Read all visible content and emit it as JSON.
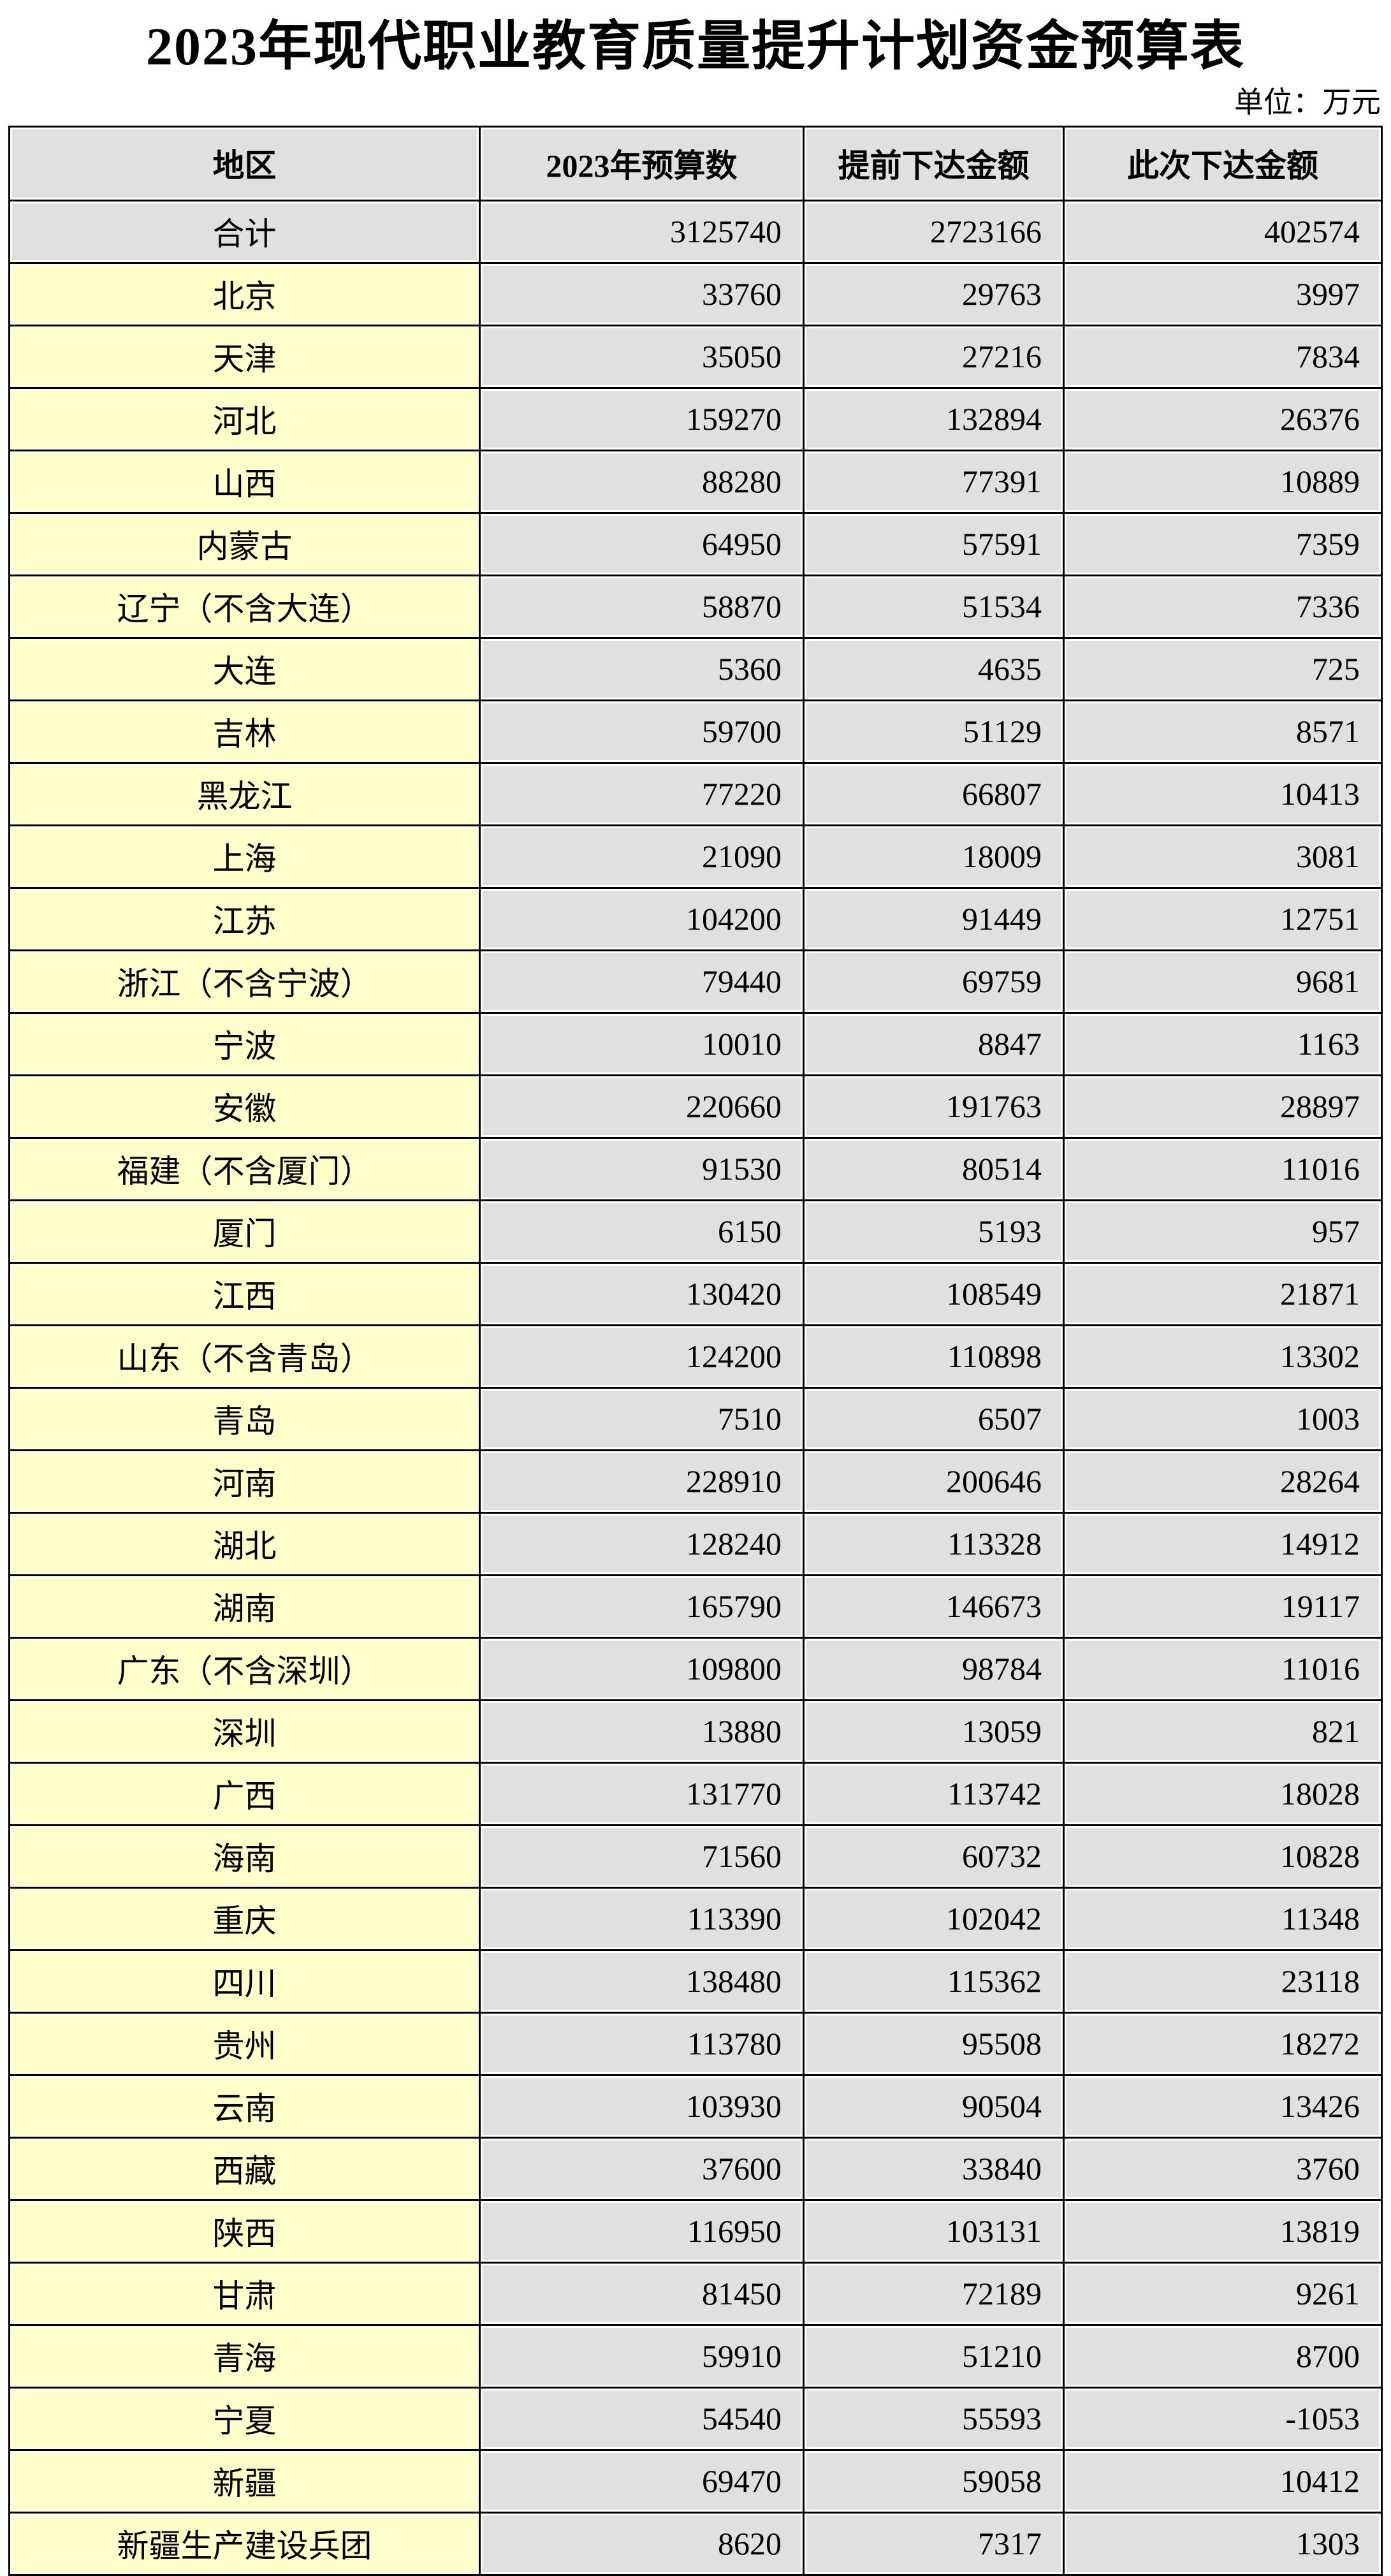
{
  "title": "2023年现代职业教育质量提升计划资金预算表",
  "unit_label": "单位：万元",
  "colors": {
    "region_column_fill": "#ffffcc",
    "data_cell_fill": "#e0e0e0",
    "gridline": "#000000",
    "background": "#ffffff"
  },
  "table": {
    "headers": [
      "地区",
      "2023年预算数",
      "提前下达金额",
      "此次下达金额"
    ],
    "total_row": {
      "region": "合计",
      "values": [
        3125740,
        2723166,
        402574
      ]
    },
    "rows": [
      {
        "region": "北京",
        "values": [
          33760,
          29763,
          3997
        ]
      },
      {
        "region": "天津",
        "values": [
          35050,
          27216,
          7834
        ]
      },
      {
        "region": "河北",
        "values": [
          159270,
          132894,
          26376
        ]
      },
      {
        "region": "山西",
        "values": [
          88280,
          77391,
          10889
        ]
      },
      {
        "region": "内蒙古",
        "values": [
          64950,
          57591,
          7359
        ]
      },
      {
        "region": "辽宁（不含大连）",
        "values": [
          58870,
          51534,
          7336
        ]
      },
      {
        "region": "大连",
        "values": [
          5360,
          4635,
          725
        ]
      },
      {
        "region": "吉林",
        "values": [
          59700,
          51129,
          8571
        ]
      },
      {
        "region": "黑龙江",
        "values": [
          77220,
          66807,
          10413
        ]
      },
      {
        "region": "上海",
        "values": [
          21090,
          18009,
          3081
        ]
      },
      {
        "region": "江苏",
        "values": [
          104200,
          91449,
          12751
        ]
      },
      {
        "region": "浙江（不含宁波）",
        "values": [
          79440,
          69759,
          9681
        ]
      },
      {
        "region": "宁波",
        "values": [
          10010,
          8847,
          1163
        ]
      },
      {
        "region": "安徽",
        "values": [
          220660,
          191763,
          28897
        ]
      },
      {
        "region": "福建（不含厦门）",
        "values": [
          91530,
          80514,
          11016
        ]
      },
      {
        "region": "厦门",
        "values": [
          6150,
          5193,
          957
        ]
      },
      {
        "region": "江西",
        "values": [
          130420,
          108549,
          21871
        ]
      },
      {
        "region": "山东（不含青岛）",
        "values": [
          124200,
          110898,
          13302
        ]
      },
      {
        "region": "青岛",
        "values": [
          7510,
          6507,
          1003
        ]
      },
      {
        "region": "河南",
        "values": [
          228910,
          200646,
          28264
        ]
      },
      {
        "region": "湖北",
        "values": [
          128240,
          113328,
          14912
        ]
      },
      {
        "region": "湖南",
        "values": [
          165790,
          146673,
          19117
        ]
      },
      {
        "region": "广东（不含深圳）",
        "values": [
          109800,
          98784,
          11016
        ]
      },
      {
        "region": "深圳",
        "values": [
          13880,
          13059,
          821
        ]
      },
      {
        "region": "广西",
        "values": [
          131770,
          113742,
          18028
        ]
      },
      {
        "region": "海南",
        "values": [
          71560,
          60732,
          10828
        ]
      },
      {
        "region": "重庆",
        "values": [
          113390,
          102042,
          11348
        ]
      },
      {
        "region": "四川",
        "values": [
          138480,
          115362,
          23118
        ]
      },
      {
        "region": "贵州",
        "values": [
          113780,
          95508,
          18272
        ]
      },
      {
        "region": "云南",
        "values": [
          103930,
          90504,
          13426
        ]
      },
      {
        "region": "西藏",
        "values": [
          37600,
          33840,
          3760
        ]
      },
      {
        "region": "陕西",
        "values": [
          116950,
          103131,
          13819
        ]
      },
      {
        "region": "甘肃",
        "values": [
          81450,
          72189,
          9261
        ]
      },
      {
        "region": "青海",
        "values": [
          59910,
          51210,
          8700
        ]
      },
      {
        "region": "宁夏",
        "values": [
          54540,
          55593,
          -1053
        ]
      },
      {
        "region": "新疆",
        "values": [
          69470,
          59058,
          10412
        ]
      },
      {
        "region": "新疆生产建设兵团",
        "values": [
          8620,
          7317,
          1303
        ]
      }
    ]
  }
}
